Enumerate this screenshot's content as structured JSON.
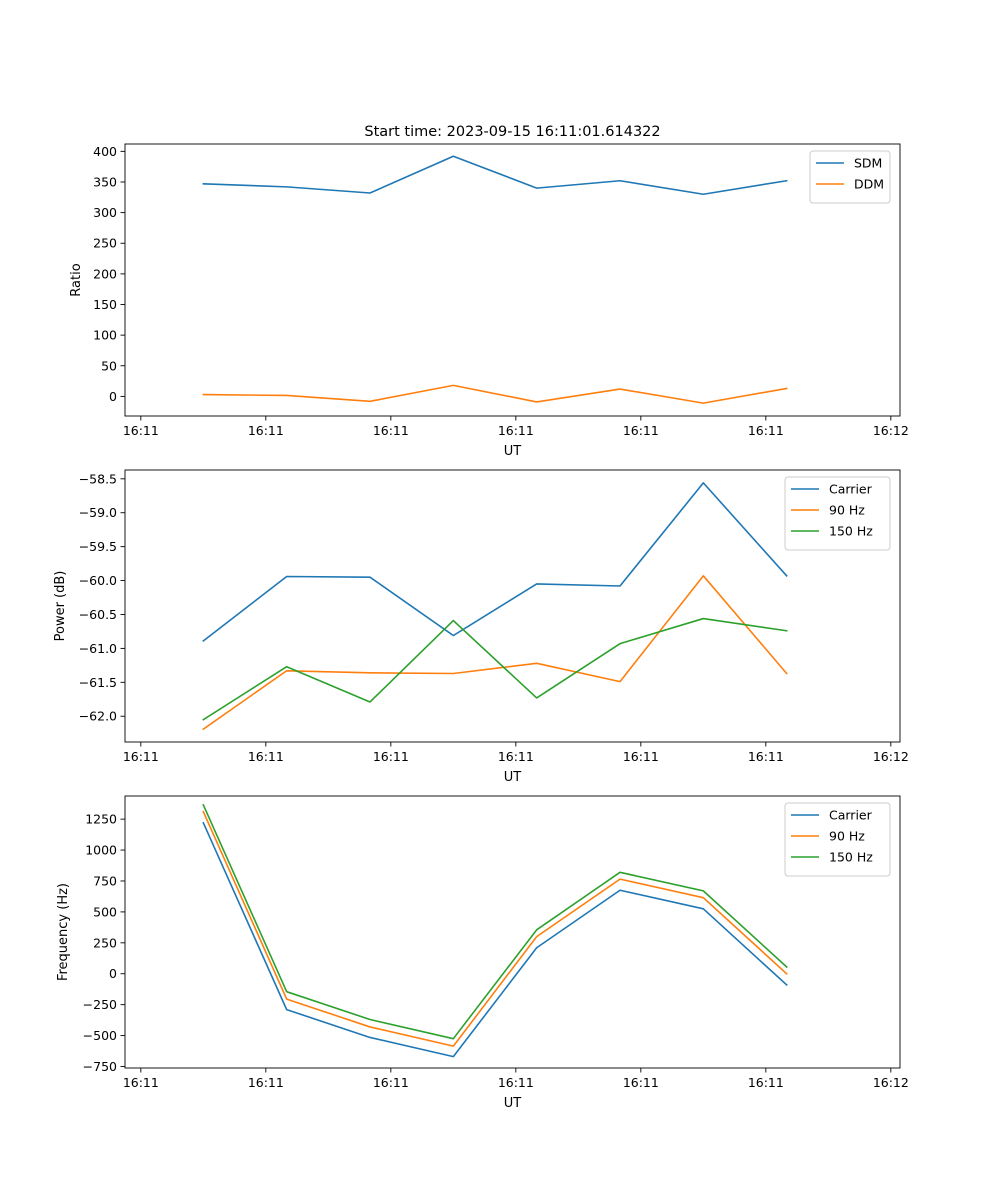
{
  "figure": {
    "title": "Start time: 2023-09-15 16:11:01.614322"
  },
  "chart_data": [
    {
      "type": "line",
      "title": "Start time: 2023-09-15 16:11:01.614322",
      "xlabel": "UT",
      "ylabel": "Ratio",
      "x": [
        1,
        2,
        3,
        4,
        5,
        6,
        7,
        8
      ],
      "xlim": [
        0.06,
        9.36
      ],
      "xticks": [
        0.25,
        1.75,
        3.25,
        4.75,
        6.25,
        7.75,
        9.25
      ],
      "xtick_labels": [
        "16:11",
        "16:11",
        "16:11",
        "16:11",
        "16:11",
        "16:11",
        "16:12"
      ],
      "ylim": [
        -32,
        412
      ],
      "yticks": [
        0,
        50,
        100,
        150,
        200,
        250,
        300,
        350,
        400
      ],
      "ytick_labels": [
        "0",
        "50",
        "100",
        "150",
        "200",
        "250",
        "300",
        "350",
        "400"
      ],
      "legend_position": "top-right",
      "series": [
        {
          "name": "SDM",
          "color": "#1f77b4",
          "values": [
            347,
            342,
            332,
            392,
            340,
            352,
            330,
            352
          ]
        },
        {
          "name": "DDM",
          "color": "#ff7f0e",
          "values": [
            3,
            1.5,
            -8,
            18,
            -9,
            12,
            -11,
            13
          ]
        }
      ]
    },
    {
      "type": "line",
      "title": "",
      "xlabel": "UT",
      "ylabel": "Power (dB)",
      "x": [
        1,
        2,
        3,
        4,
        5,
        6,
        7,
        8
      ],
      "xlim": [
        0.06,
        9.36
      ],
      "xticks": [
        0.25,
        1.75,
        3.25,
        4.75,
        6.25,
        7.75,
        9.25
      ],
      "xtick_labels": [
        "16:11",
        "16:11",
        "16:11",
        "16:11",
        "16:11",
        "16:11",
        "16:12"
      ],
      "ylim": [
        -62.38,
        -58.37
      ],
      "yticks": [
        -62.0,
        -61.5,
        -61.0,
        -60.5,
        -60.0,
        -59.5,
        -59.0,
        -58.5
      ],
      "ytick_labels": [
        "−62.0",
        "−61.5",
        "−61.0",
        "−60.5",
        "−60.0",
        "−59.5",
        "−59.0",
        "−58.5"
      ],
      "legend_position": "top-right",
      "series": [
        {
          "name": "Carrier",
          "color": "#1f77b4",
          "values": [
            -60.89,
            -59.94,
            -59.95,
            -60.81,
            -60.05,
            -60.08,
            -58.56,
            -59.93
          ]
        },
        {
          "name": "90 Hz",
          "color": "#ff7f0e",
          "values": [
            -62.19,
            -61.33,
            -61.36,
            -61.37,
            -61.22,
            -61.49,
            -59.93,
            -61.37
          ]
        },
        {
          "name": "150 Hz",
          "color": "#2ca02c",
          "values": [
            -62.05,
            -61.27,
            -61.79,
            -60.59,
            -61.73,
            -60.93,
            -60.56,
            -60.74
          ]
        }
      ]
    },
    {
      "type": "line",
      "title": "",
      "xlabel": "UT",
      "ylabel": "Frequency (Hz)",
      "x": [
        1,
        2,
        3,
        4,
        5,
        6,
        7,
        8
      ],
      "xlim": [
        0.06,
        9.36
      ],
      "xticks": [
        0.25,
        1.75,
        3.25,
        4.75,
        6.25,
        7.75,
        9.25
      ],
      "xtick_labels": [
        "16:11",
        "16:11",
        "16:11",
        "16:11",
        "16:11",
        "16:11",
        "16:12"
      ],
      "ylim": [
        -762,
        1437
      ],
      "yticks": [
        -750,
        -500,
        -250,
        0,
        250,
        500,
        750,
        1000,
        1250
      ],
      "ytick_labels": [
        "−750",
        "−500",
        "−250",
        "0",
        "250",
        "500",
        "750",
        "1000",
        "1250"
      ],
      "legend_position": "top-right",
      "series": [
        {
          "name": "Carrier",
          "color": "#1f77b4",
          "values": [
            1220,
            -290,
            -515,
            -670,
            210,
            675,
            525,
            -90
          ]
        },
        {
          "name": "90 Hz",
          "color": "#ff7f0e",
          "values": [
            1310,
            -205,
            -430,
            -585,
            300,
            765,
            615,
            0
          ]
        },
        {
          "name": "150 Hz",
          "color": "#2ca02c",
          "values": [
            1365,
            -145,
            -370,
            -525,
            355,
            820,
            670,
            55
          ]
        }
      ]
    }
  ]
}
